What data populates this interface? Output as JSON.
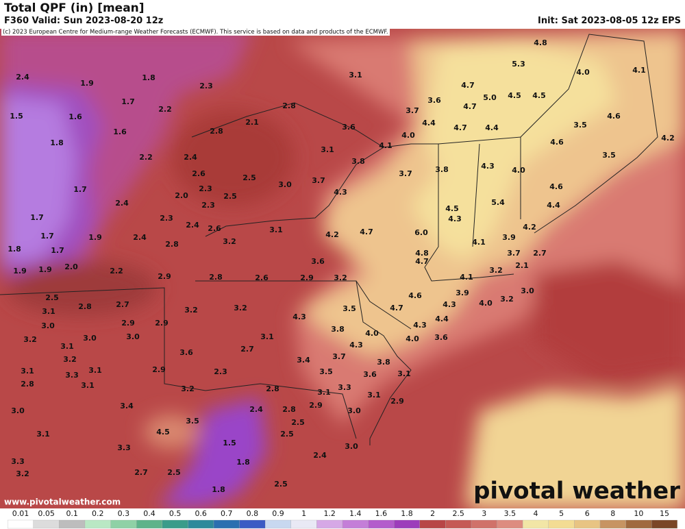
{
  "header": {
    "title": "Total QPF (in) [mean]",
    "valid": "F360 Valid: Sun 2023-08-20 12z",
    "init": "Init: Sat 2023-08-05 12z EPS",
    "credit": "(c) 2023 European Centre for Medium-range Weather Forecasts (ECMWF). This service is based on data and products of the ECMWF."
  },
  "map": {
    "labels": [
      "2.4",
      "1.9",
      "1.8",
      "3.1",
      "4.8",
      "5.3",
      "4.0",
      "4.1",
      "2.3",
      "4.7",
      "3.6",
      "5.0",
      "4.5",
      "4.5",
      "1.7",
      "2.2",
      "2.8",
      "4.7",
      "3.7",
      "4.6",
      "1.5",
      "1.6",
      "2.1",
      "4.4",
      "4.7",
      "4.4",
      "3.5",
      "1.6",
      "2.8",
      "3.6",
      "4.0",
      "1.8",
      "4.6",
      "4.2",
      "4.1",
      "2.2",
      "2.4",
      "3.1",
      "3.8",
      "4.3",
      "3.5",
      "2.6",
      "3.8",
      "3.7",
      "4.0",
      "2.5",
      "3.0",
      "3.7",
      "4.6",
      "1.7",
      "2.3",
      "2.0",
      "2.5",
      "4.3",
      "2.4",
      "2.3",
      "5.4",
      "4.4",
      "1.7",
      "2.3",
      "2.4",
      "2.6",
      "4.5",
      "3.1",
      "4.3",
      "4.2",
      "1.7",
      "2.4",
      "1.9",
      "4.2",
      "4.7",
      "6.0",
      "3.2",
      "2.8",
      "4.1",
      "3.9",
      "1.8",
      "1.7",
      "4.8",
      "3.7",
      "2.7",
      "3.6",
      "4.7",
      "2.0",
      "2.2",
      "1.9",
      "1.9",
      "2.1",
      "2.9",
      "2.8",
      "2.6",
      "2.9",
      "3.2",
      "4.1",
      "3.2",
      "3.9",
      "3.0",
      "3.2",
      "2.5",
      "4.6",
      "4.0",
      "4.3",
      "3.1",
      "2.8",
      "2.7",
      "3.2",
      "3.2",
      "4.7",
      "3.5",
      "4.3",
      "4.4",
      "3.0",
      "2.9",
      "2.9",
      "4.3",
      "3.8",
      "4.0",
      "3.2",
      "3.0",
      "3.1",
      "4.0",
      "3.6",
      "3.1",
      "3.0",
      "4.3",
      "3.2",
      "3.6",
      "2.7",
      "3.7",
      "3.1",
      "3.3",
      "3.1",
      "2.9",
      "2.3",
      "3.4",
      "3.5",
      "3.8",
      "3.6",
      "3.1",
      "2.8",
      "3.1",
      "3.2",
      "2.8",
      "3.3",
      "3.1",
      "3.1",
      "2.9",
      "3.0",
      "3.4",
      "2.4",
      "2.8",
      "2.9",
      "3.0",
      "3.5",
      "2.5",
      "4.5",
      "3.1",
      "2.5",
      "1.5",
      "3.3",
      "3.0",
      "2.4",
      "3.3",
      "1.8",
      "3.2",
      "2.7",
      "2.5",
      "2.5",
      "1.8"
    ]
  },
  "legend": {
    "ticks": [
      0.01,
      0.05,
      0.1,
      0.2,
      0.3,
      0.4,
      0.5,
      0.6,
      0.7,
      0.8,
      0.9,
      1,
      1.2,
      1.4,
      1.6,
      1.8,
      2,
      2.5,
      3,
      3.5,
      4,
      5,
      6,
      8,
      10,
      15
    ]
  },
  "branding": {
    "logo": "pivotal weather",
    "url": "www.pivotalweather.com"
  }
}
